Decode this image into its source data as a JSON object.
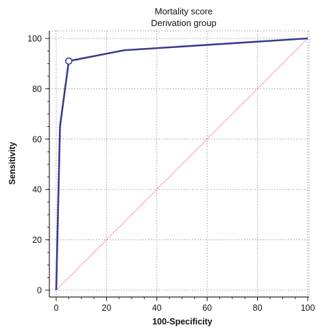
{
  "chart_data": {
    "type": "line",
    "title": "Mortality score",
    "subtitle": "Derivation group",
    "xlabel": "100-Specificity",
    "ylabel": "Sensitivity",
    "xlim": [
      0,
      100
    ],
    "ylim": [
      0,
      100
    ],
    "x_ticks": [
      0,
      20,
      40,
      60,
      80,
      100
    ],
    "y_ticks": [
      0,
      20,
      40,
      60,
      80,
      100
    ],
    "grid": true,
    "series": [
      {
        "color": "#3a3a8c",
        "x": [
          0,
          1.5,
          5,
          27,
          100
        ],
        "y": [
          0,
          65,
          91,
          95.3,
          100
        ]
      }
    ],
    "reference_line": {
      "x": [
        0,
        100
      ],
      "y": [
        0,
        100
      ],
      "color": "#d05050"
    },
    "highlight_point": {
      "x": 5,
      "y": 91
    }
  }
}
